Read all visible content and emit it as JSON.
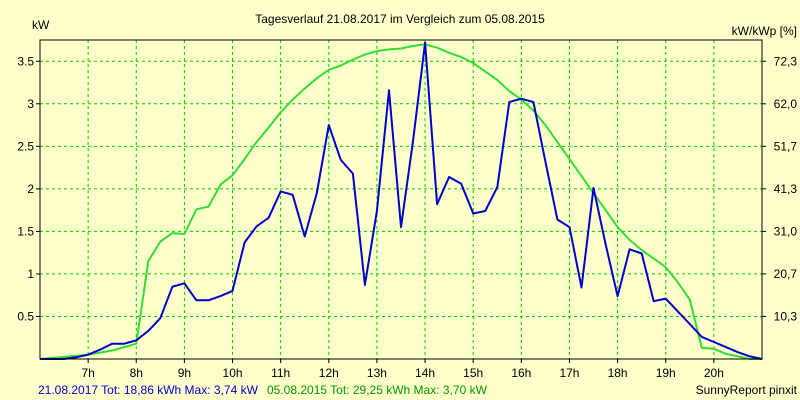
{
  "colors": {
    "background": "#ffffcc",
    "grid": "#00cc00",
    "series_2017": "#0000cc",
    "series_2015": "#33dd33"
  },
  "chart_data": {
    "type": "line",
    "title": "Tagesverlauf 21.08.2017 im Vergleich zum 05.08.2015",
    "ylabel_left": "kW",
    "ylabel_right": "kW/kWp [%]",
    "xlim": [
      6.0,
      21.0
    ],
    "ylim": [
      0,
      3.75
    ],
    "grid": true,
    "x_ticks": [
      {
        "value": 7,
        "label": "7h"
      },
      {
        "value": 8,
        "label": "8h"
      },
      {
        "value": 9,
        "label": "9h"
      },
      {
        "value": 10,
        "label": "10h"
      },
      {
        "value": 11,
        "label": "11h"
      },
      {
        "value": 12,
        "label": "12h"
      },
      {
        "value": 13,
        "label": "13h"
      },
      {
        "value": 14,
        "label": "14h"
      },
      {
        "value": 15,
        "label": "15h"
      },
      {
        "value": 16,
        "label": "16h"
      },
      {
        "value": 17,
        "label": "17h"
      },
      {
        "value": 18,
        "label": "18h"
      },
      {
        "value": 19,
        "label": "19h"
      },
      {
        "value": 20,
        "label": "20h"
      }
    ],
    "y_ticks_left": [
      {
        "value": 0.5,
        "label": "0.5"
      },
      {
        "value": 1,
        "label": "1"
      },
      {
        "value": 1.5,
        "label": "1.5"
      },
      {
        "value": 2,
        "label": "2"
      },
      {
        "value": 2.5,
        "label": "2.5"
      },
      {
        "value": 3,
        "label": "3"
      },
      {
        "value": 3.5,
        "label": "3.5"
      }
    ],
    "y_ticks_right": [
      {
        "value": 0.5,
        "label": "10,3"
      },
      {
        "value": 1,
        "label": "20,7"
      },
      {
        "value": 1.5,
        "label": "31,0"
      },
      {
        "value": 2,
        "label": "41,3"
      },
      {
        "value": 2.5,
        "label": "51,7"
      },
      {
        "value": 3,
        "label": "62,0"
      },
      {
        "value": 3.5,
        "label": "72,3"
      }
    ],
    "series": [
      {
        "name": "21.08.2017",
        "summary": "21.08.2017 Tot: 18,86 kWh Max: 3,74 kW",
        "x": [
          6.0,
          6.5,
          6.75,
          7.0,
          7.25,
          7.5,
          7.75,
          8.0,
          8.25,
          8.5,
          8.75,
          9.0,
          9.25,
          9.5,
          9.75,
          10.0,
          10.25,
          10.5,
          10.75,
          11.0,
          11.25,
          11.5,
          11.75,
          12.0,
          12.25,
          12.5,
          12.75,
          13.0,
          13.25,
          13.5,
          13.75,
          14.0,
          14.25,
          14.5,
          14.75,
          15.0,
          15.25,
          15.5,
          15.75,
          16.0,
          16.25,
          16.5,
          16.75,
          17.0,
          17.25,
          17.5,
          17.75,
          18.0,
          18.25,
          18.5,
          18.75,
          19.0,
          19.25,
          19.5,
          19.75,
          20.0,
          20.25,
          20.5,
          20.75,
          21.0
        ],
        "y": [
          0.0,
          0.0,
          0.02,
          0.05,
          0.11,
          0.18,
          0.18,
          0.22,
          0.33,
          0.48,
          0.85,
          0.89,
          0.69,
          0.69,
          0.74,
          0.8,
          1.37,
          1.56,
          1.66,
          1.97,
          1.93,
          1.44,
          1.95,
          2.75,
          2.34,
          2.18,
          0.87,
          1.74,
          3.16,
          1.55,
          2.56,
          3.72,
          1.82,
          2.14,
          2.06,
          1.71,
          1.74,
          2.02,
          3.02,
          3.06,
          3.02,
          2.32,
          1.64,
          1.55,
          0.84,
          2.01,
          1.35,
          0.74,
          1.29,
          1.24,
          0.68,
          0.71,
          0.56,
          0.41,
          0.26,
          0.2,
          0.14,
          0.08,
          0.03,
          0.0
        ]
      },
      {
        "name": "05.08.2015",
        "summary": "05.08.2015 Tot: 29,25 kWh Max: 3,70 kW",
        "x": [
          6.0,
          7.0,
          7.5,
          8.0,
          8.25,
          8.5,
          8.75,
          9.0,
          9.25,
          9.5,
          9.75,
          10.0,
          10.25,
          10.5,
          10.75,
          11.0,
          11.25,
          11.5,
          11.75,
          12.0,
          12.25,
          12.5,
          12.75,
          13.0,
          13.25,
          13.5,
          13.75,
          14.0,
          14.25,
          14.5,
          14.75,
          15.0,
          15.25,
          15.5,
          15.75,
          16.0,
          16.25,
          16.5,
          16.75,
          17.0,
          17.25,
          17.5,
          17.75,
          18.0,
          18.25,
          18.5,
          18.75,
          19.0,
          19.25,
          19.5,
          19.75,
          20.0,
          20.25,
          20.5,
          20.75,
          21.0
        ],
        "y": [
          0.0,
          0.05,
          0.1,
          0.18,
          1.15,
          1.38,
          1.48,
          1.47,
          1.76,
          1.79,
          2.05,
          2.16,
          2.35,
          2.55,
          2.72,
          2.9,
          3.05,
          3.18,
          3.3,
          3.4,
          3.45,
          3.52,
          3.58,
          3.62,
          3.64,
          3.65,
          3.68,
          3.7,
          3.66,
          3.6,
          3.55,
          3.48,
          3.38,
          3.28,
          3.15,
          3.05,
          2.92,
          2.75,
          2.55,
          2.35,
          2.15,
          1.95,
          1.75,
          1.55,
          1.4,
          1.28,
          1.18,
          1.08,
          0.9,
          0.7,
          0.13,
          0.12,
          0.06,
          0.03,
          0.0,
          0.0
        ]
      }
    ]
  },
  "footer": {
    "summary_2017": "21.08.2017 Tot: 18,86 kWh Max: 3,74 kW",
    "summary_2015": "05.08.2015 Tot: 29,25 kWh Max: 3,70 kW",
    "brand": "SunnyReport pinxit"
  }
}
